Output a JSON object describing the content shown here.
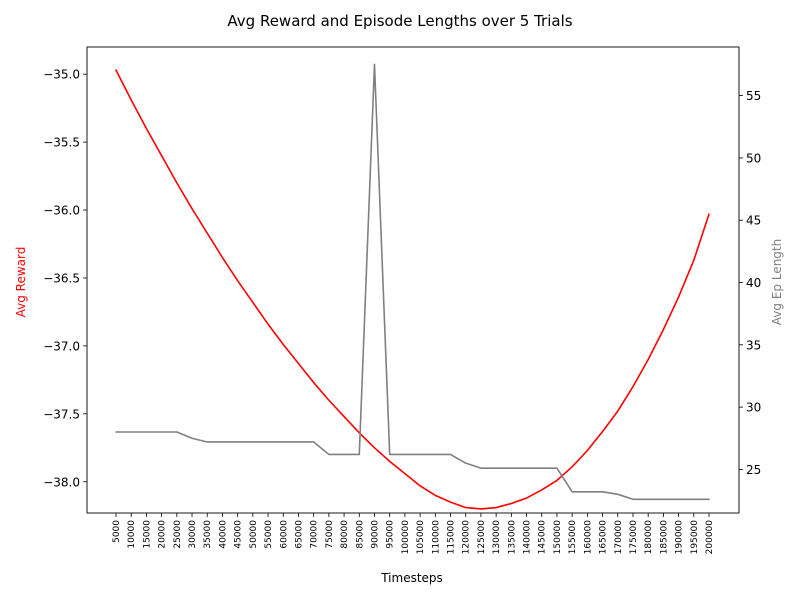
{
  "chart_data": {
    "type": "line",
    "title": "Avg Reward and Episode Lengths over 5 Trials",
    "xlabel": "Timesteps",
    "x": [
      5000,
      10000,
      15000,
      20000,
      25000,
      30000,
      35000,
      40000,
      45000,
      50000,
      55000,
      60000,
      65000,
      70000,
      75000,
      80000,
      85000,
      90000,
      95000,
      100000,
      105000,
      110000,
      115000,
      120000,
      125000,
      130000,
      135000,
      140000,
      145000,
      150000,
      155000,
      160000,
      165000,
      170000,
      175000,
      180000,
      185000,
      190000,
      195000,
      200000
    ],
    "x_tick_labels": [
      "5000",
      "10000",
      "15000",
      "20000",
      "25000",
      "30000",
      "35000",
      "40000",
      "45000",
      "50000",
      "55000",
      "60000",
      "65000",
      "70000",
      "75000",
      "80000",
      "85000",
      "90000",
      "95000",
      "100000",
      "105000",
      "110000",
      "115000",
      "120000",
      "125000",
      "130000",
      "135000",
      "140000",
      "145000",
      "150000",
      "155000",
      "160000",
      "165000",
      "170000",
      "175000",
      "180000",
      "185000",
      "190000",
      "195000",
      "200000"
    ],
    "left_axis": {
      "label": "Avg Reward",
      "color": "#ff0000",
      "ylim": [
        -38.23,
        -34.8
      ],
      "ticks": [
        -35.0,
        -35.5,
        -36.0,
        -36.5,
        -37.0,
        -37.5,
        -38.0
      ],
      "tick_labels": [
        "−35.0",
        "−35.5",
        "−36.0",
        "−36.5",
        "−37.0",
        "−37.5",
        "−38.0"
      ]
    },
    "right_axis": {
      "label": "Avg Ep Length",
      "color": "#808080",
      "ylim": [
        21.5,
        58.9
      ],
      "ticks": [
        25,
        30,
        35,
        40,
        45,
        50,
        55
      ],
      "tick_labels": [
        "25",
        "30",
        "35",
        "40",
        "45",
        "50",
        "55"
      ]
    },
    "series": [
      {
        "axis": "left",
        "color": "#ff0000",
        "values": [
          -34.97,
          -35.19,
          -35.4,
          -35.6,
          -35.8,
          -35.99,
          -36.17,
          -36.35,
          -36.52,
          -36.68,
          -36.84,
          -36.99,
          -37.13,
          -37.27,
          -37.4,
          -37.52,
          -37.64,
          -37.75,
          -37.85,
          -37.94,
          -38.03,
          -38.1,
          -38.15,
          -38.19,
          -38.2,
          -38.19,
          -38.16,
          -38.12,
          -38.06,
          -37.99,
          -37.89,
          -37.77,
          -37.63,
          -37.48,
          -37.3,
          -37.1,
          -36.88,
          -36.64,
          -36.37,
          -36.03
        ]
      },
      {
        "axis": "right",
        "color": "#808080",
        "values": [
          28,
          28,
          28,
          28,
          28,
          27.5,
          27.2,
          27.2,
          27.2,
          27.2,
          27.2,
          27.2,
          27.2,
          27.2,
          26.2,
          26.2,
          26.2,
          57.5,
          26.2,
          26.2,
          26.2,
          26.2,
          26.2,
          25.5,
          25.1,
          25.1,
          25.1,
          25.1,
          25.1,
          25.1,
          23.2,
          23.2,
          23.2,
          23.0,
          22.6,
          22.6,
          22.6,
          22.6,
          22.6,
          22.6
        ]
      }
    ]
  }
}
